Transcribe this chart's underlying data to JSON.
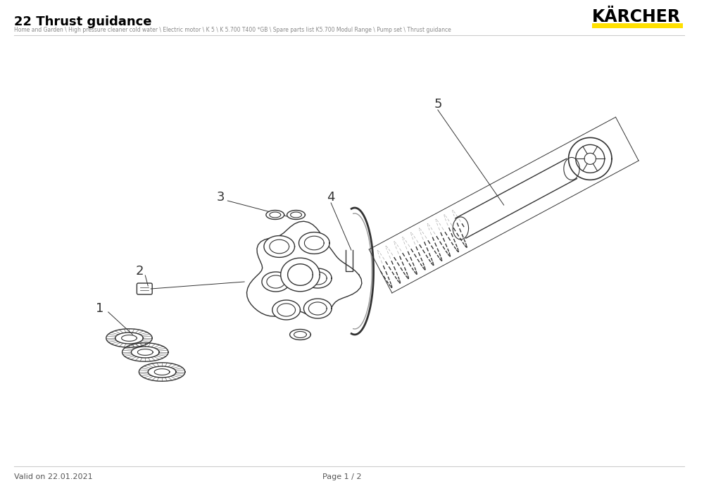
{
  "title": "22 Thrust guidance",
  "breadcrumb": "Home and Garden \\ High pressure cleaner cold water \\ Electric motor \\ K 5 \\ K 5.700 T400 *GB \\ Spare parts list K5.700 Modul Range \\ Pump set \\ Thrust guidance",
  "brand": "KÄRCHER",
  "footer_left": "Valid on 22.01.2021",
  "footer_center": "Page 1 / 2",
  "bg_color": "#ffffff",
  "title_color": "#000000",
  "breadcrumb_color": "#888888",
  "brand_color": "#000000",
  "brand_yellow": "#FFE000",
  "line_color": "#cccccc",
  "parts_numbers": [
    "1",
    "2",
    "3",
    "4",
    "5"
  ],
  "fig_width": 10.0,
  "fig_height": 7.07
}
